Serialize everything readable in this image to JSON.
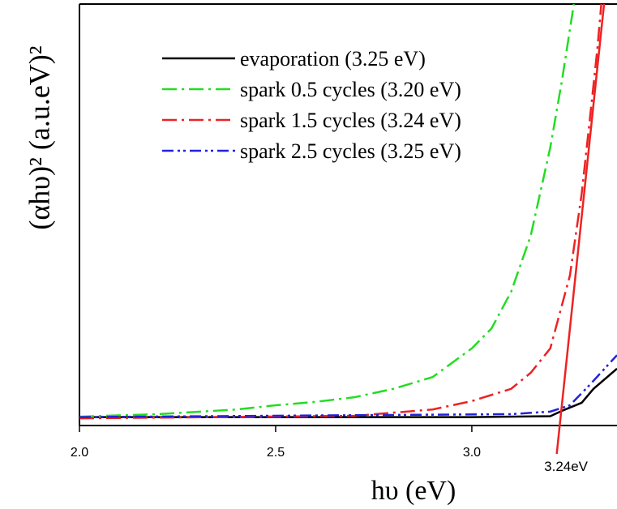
{
  "chart_data": {
    "type": "line",
    "x_label": "hυ (eV)",
    "y_label": "(αhυ)² (a.u.eV)²",
    "xlim": [
      2.0,
      3.37
    ],
    "ylim": [
      0,
      100
    ],
    "xticks": [
      {
        "value": 2.0,
        "label": "2.0"
      },
      {
        "value": 2.5,
        "label": "2.5"
      },
      {
        "value": 3.0,
        "label": "3.0"
      }
    ],
    "legend": "upper left",
    "series": [
      {
        "name": "evaporation (3.25 eV)",
        "color": "#000000",
        "dash": "solid",
        "x": [
          2.0,
          2.5,
          3.0,
          3.2,
          3.23,
          3.28,
          3.31,
          3.37
        ],
        "values": [
          2,
          2,
          2,
          2.2,
          3.5,
          5.4,
          8.7,
          13.5
        ]
      },
      {
        "name": "spark 0.5 cycles (3.20 eV)",
        "color": "#22dd22",
        "dash": "dashdot",
        "x": [
          2.0,
          2.2,
          2.4,
          2.5,
          2.6,
          2.7,
          2.8,
          2.9,
          3.0,
          3.05,
          3.1,
          3.15,
          3.2,
          3.23,
          3.26
        ],
        "values": [
          2.1,
          2.7,
          3.8,
          4.8,
          5.6,
          6.7,
          8.7,
          11.5,
          18.3,
          23,
          31.7,
          45,
          66,
          82,
          100
        ]
      },
      {
        "name": "spark 1.5 cycles (3.24 eV)",
        "color": "#ee2222",
        "dash": "dashdot",
        "x": [
          2.0,
          2.7,
          2.9,
          3.0,
          3.1,
          3.15,
          3.2,
          3.25,
          3.28,
          3.3,
          3.32,
          3.33
        ],
        "values": [
          1.7,
          2.3,
          3.8,
          5.8,
          8.7,
          12.5,
          18.3,
          35.6,
          55,
          72,
          89.4,
          100
        ]
      },
      {
        "name": "spark 2.5 cycles (3.25 eV)",
        "color": "#2222dd",
        "dash": "dashdotdot",
        "x": [
          2.0,
          3.1,
          3.2,
          3.25,
          3.3,
          3.37
        ],
        "values": [
          2,
          2.7,
          3.3,
          4.8,
          9.6,
          16.7
        ]
      }
    ],
    "fit_line": {
      "color": "#ee2222",
      "x": [
        3.224,
        3.337
      ],
      "values": [
        0,
        100
      ]
    },
    "annotation": {
      "text": "3.24eV",
      "x": 3.24
    }
  }
}
